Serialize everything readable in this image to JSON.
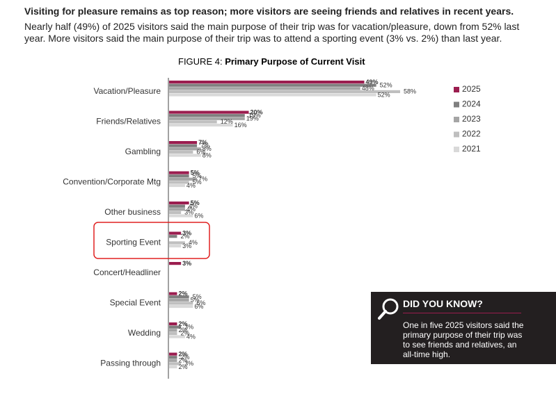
{
  "header": {
    "title": "Visiting for pleasure remains as top reason; more visitors are seeing friends and relatives in recent years.",
    "text": "Nearly half (49%) of 2025 visitors said the main purpose of their trip was for vacation/pleasure, down from 52% last year.  More visitors said the main purpose of their trip was to attend a sporting event (3% vs. 2%) than last year."
  },
  "chart_data": {
    "type": "bar",
    "orientation": "horizontal",
    "figure_label": "FIGURE 4:",
    "title": "Primary Purpose of Current Visit",
    "categories": [
      "Vacation/Pleasure",
      "Friends/Relatives",
      "Gambling",
      "Convention/Corporate Mtg",
      "Other business",
      "Sporting Event",
      "Concert/Headliner",
      "Special Event",
      "Wedding",
      "Passing through"
    ],
    "series": [
      {
        "name": "2025",
        "color": "#9b1d4f",
        "values": [
          49,
          20,
          7,
          5,
          5,
          3,
          3,
          2,
          2,
          2
        ],
        "value_labels": [
          "49%",
          "20%",
          "7%",
          "5%",
          "5%",
          "3%",
          "3%",
          "2%",
          "2%",
          "2%"
        ]
      },
      {
        "name": "2024",
        "color": "#7f7f7f",
        "values": [
          52,
          19,
          7,
          5,
          4,
          2,
          null,
          5,
          3,
          2
        ],
        "value_labels": [
          "52%",
          "19%",
          "7%",
          "5%",
          "4%",
          "2%",
          null,
          "5%",
          "3%",
          "2%"
        ]
      },
      {
        "name": "2023",
        "color": "#a5a5a5",
        "values": [
          48,
          19,
          8,
          7,
          4,
          null,
          null,
          5,
          2,
          2
        ],
        "value_labels": [
          "48%",
          "19%",
          "8%",
          "7%",
          "4%",
          null,
          null,
          "5%",
          "2%",
          "2%"
        ]
      },
      {
        "name": "2022",
        "color": "#bfbfbf",
        "values": [
          58,
          12,
          6,
          5,
          3,
          4,
          null,
          6,
          2,
          3
        ],
        "value_labels": [
          "58%",
          "12%",
          "6%",
          "5%",
          "3%",
          "4%",
          null,
          "6%",
          "2%",
          "3%"
        ]
      },
      {
        "name": "2021",
        "color": "#d9d9d9",
        "values": [
          52,
          16,
          8,
          4,
          6,
          3,
          null,
          6,
          4,
          2
        ],
        "value_labels": [
          "52%",
          "16%",
          "8%",
          "4%",
          "6%",
          "3%",
          null,
          "6%",
          "4%",
          "2%"
        ]
      }
    ]
  },
  "callout": {
    "title": "DID YOU KNOW?",
    "text": "One in five 2025 visitors said the primary purpose of their trip was to see friends and relatives, an all-time high."
  }
}
